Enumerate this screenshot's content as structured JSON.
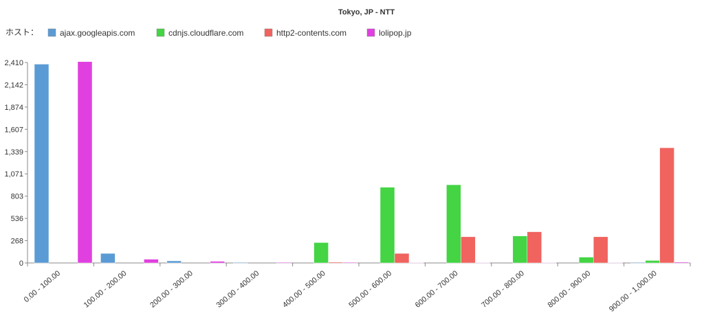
{
  "chart_data": {
    "type": "bar",
    "title": "Tokyo, JP - NTT",
    "legend_label": "ホスト：",
    "legend_position": "top-left",
    "xlabel": "",
    "ylabel": "",
    "ylim": [
      0,
      2410
    ],
    "yticks": [
      0,
      268,
      536,
      803,
      1071,
      1339,
      1607,
      1874,
      2142,
      2410
    ],
    "ytick_labels": [
      "0",
      "268",
      "536",
      "803",
      "1,071",
      "1,339",
      "1,607",
      "1,874",
      "2,142",
      "2,410"
    ],
    "grid": false,
    "categories": [
      "0.00 - 100.00",
      "100.00 - 200.00",
      "200.00 - 300.00",
      "300.00 - 400.00",
      "400.00 - 500.00",
      "500.00 - 600.00",
      "600.00 - 700.00",
      "700.00 - 800.00",
      "800.00 - 900.00",
      "900.00 - 1,000.00"
    ],
    "series": [
      {
        "name": "ajax.googleapis.com",
        "color": "#5b9bd5",
        "values": [
          2390,
          115,
          25,
          8,
          0,
          0,
          0,
          0,
          0,
          8
        ]
      },
      {
        "name": "cdnjs.cloudflare.com",
        "color": "#44d444",
        "values": [
          0,
          0,
          0,
          0,
          245,
          910,
          940,
          325,
          70,
          30
        ]
      },
      {
        "name": "http2-contents.com",
        "color": "#f0635f",
        "values": [
          0,
          0,
          0,
          0,
          10,
          115,
          315,
          375,
          315,
          1385
        ]
      },
      {
        "name": "lolipop.jp",
        "color": "#e040e0",
        "values": [
          2420,
          45,
          20,
          8,
          8,
          5,
          5,
          5,
          5,
          10
        ]
      }
    ]
  }
}
